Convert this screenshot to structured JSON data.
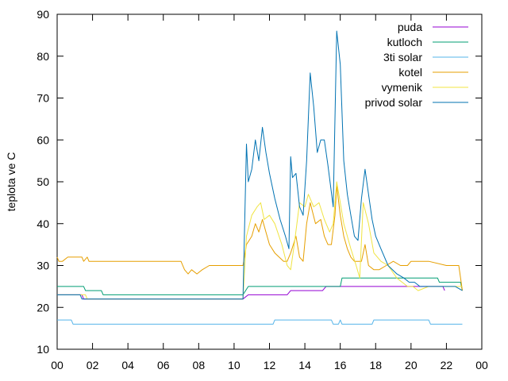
{
  "chart_data": {
    "type": "line",
    "title": "",
    "xlabel": "",
    "ylabel": "teplota ve C",
    "xlim": [
      0,
      24
    ],
    "ylim": [
      10,
      90
    ],
    "x_unit": "hour",
    "x_ticks": [
      "00",
      "02",
      "04",
      "06",
      "08",
      "10",
      "12",
      "14",
      "16",
      "18",
      "20",
      "22",
      "00"
    ],
    "y_ticks": [
      "10",
      "20",
      "30",
      "40",
      "50",
      "60",
      "70",
      "80",
      "90"
    ],
    "grid": false,
    "legend_position": "top-right",
    "series": [
      {
        "name": "puda",
        "color": "#9400d3",
        "points": [
          [
            0,
            23
          ],
          [
            1.4,
            23
          ],
          [
            1.5,
            22
          ],
          [
            10.5,
            22
          ],
          [
            10.8,
            23
          ],
          [
            13,
            23
          ],
          [
            13.2,
            24
          ],
          [
            15,
            24
          ],
          [
            15.2,
            25
          ],
          [
            21.8,
            25
          ],
          [
            21.9,
            24
          ]
        ]
      },
      {
        "name": "kutloch",
        "color": "#009e73",
        "points": [
          [
            0,
            25
          ],
          [
            1.5,
            25
          ],
          [
            1.6,
            24
          ],
          [
            2.5,
            24
          ],
          [
            2.6,
            23
          ],
          [
            10.5,
            23
          ],
          [
            10.8,
            25
          ],
          [
            16,
            25
          ],
          [
            16.1,
            27
          ],
          [
            21.5,
            27
          ],
          [
            21.6,
            26
          ],
          [
            22.8,
            26
          ],
          [
            22.9,
            24
          ]
        ]
      },
      {
        "name": "3ti solar",
        "color": "#56b4e9",
        "points": [
          [
            0,
            17
          ],
          [
            0.8,
            17
          ],
          [
            0.9,
            16
          ],
          [
            12.2,
            16
          ],
          [
            12.3,
            17
          ],
          [
            15.5,
            17
          ],
          [
            15.6,
            16
          ],
          [
            15.9,
            16
          ],
          [
            16,
            17
          ],
          [
            16.1,
            16
          ],
          [
            17.8,
            16
          ],
          [
            17.9,
            17
          ],
          [
            21,
            17
          ],
          [
            21.1,
            16
          ],
          [
            22.9,
            16
          ]
        ]
      },
      {
        "name": "kotel",
        "color": "#e69f00",
        "points": [
          [
            0,
            32
          ],
          [
            0.1,
            31
          ],
          [
            0.3,
            31
          ],
          [
            0.6,
            32
          ],
          [
            1.4,
            32
          ],
          [
            1.5,
            31
          ],
          [
            1.7,
            32
          ],
          [
            1.8,
            31
          ],
          [
            7,
            31
          ],
          [
            7.2,
            29
          ],
          [
            7.4,
            28
          ],
          [
            7.6,
            29
          ],
          [
            7.9,
            28
          ],
          [
            8.2,
            29
          ],
          [
            8.6,
            30
          ],
          [
            10.5,
            30
          ],
          [
            10.7,
            35
          ],
          [
            11,
            37
          ],
          [
            11.2,
            40
          ],
          [
            11.4,
            38
          ],
          [
            11.6,
            41
          ],
          [
            11.8,
            38
          ],
          [
            12,
            35
          ],
          [
            12.3,
            33
          ],
          [
            12.8,
            31
          ],
          [
            13,
            31
          ],
          [
            13.2,
            33
          ],
          [
            13.5,
            37
          ],
          [
            13.7,
            32
          ],
          [
            13.9,
            31
          ],
          [
            14.1,
            40
          ],
          [
            14.3,
            45
          ],
          [
            14.6,
            40
          ],
          [
            14.9,
            41
          ],
          [
            15.1,
            37
          ],
          [
            15.3,
            35
          ],
          [
            15.5,
            35
          ],
          [
            15.7,
            42
          ],
          [
            15.8,
            49
          ],
          [
            16,
            42
          ],
          [
            16.2,
            37
          ],
          [
            16.4,
            34
          ],
          [
            16.6,
            32
          ],
          [
            16.8,
            31
          ],
          [
            17,
            31
          ],
          [
            17.2,
            31
          ],
          [
            17.4,
            35
          ],
          [
            17.6,
            30
          ],
          [
            17.9,
            29
          ],
          [
            18.2,
            29
          ],
          [
            18.6,
            30
          ],
          [
            19,
            31
          ],
          [
            19.4,
            30
          ],
          [
            19.8,
            30
          ],
          [
            20,
            31
          ],
          [
            20.4,
            31
          ],
          [
            21,
            31
          ],
          [
            22,
            30
          ],
          [
            22.7,
            30
          ],
          [
            22.9,
            24
          ]
        ]
      },
      {
        "name": "vymenik",
        "color": "#f0e442",
        "points": [
          [
            0,
            23
          ],
          [
            1.6,
            23
          ],
          [
            1.7,
            22
          ],
          [
            10.5,
            22
          ],
          [
            10.7,
            37
          ],
          [
            11,
            42
          ],
          [
            11.3,
            44
          ],
          [
            11.5,
            45
          ],
          [
            11.7,
            41
          ],
          [
            12,
            42
          ],
          [
            12.3,
            40
          ],
          [
            12.7,
            35
          ],
          [
            13,
            30
          ],
          [
            13.2,
            29
          ],
          [
            13.4,
            35
          ],
          [
            13.7,
            45
          ],
          [
            14,
            44
          ],
          [
            14.2,
            47
          ],
          [
            14.5,
            44
          ],
          [
            14.8,
            45
          ],
          [
            15.1,
            41
          ],
          [
            15.4,
            38
          ],
          [
            15.6,
            40
          ],
          [
            15.8,
            50
          ],
          [
            16,
            45
          ],
          [
            16.2,
            40
          ],
          [
            16.4,
            37
          ],
          [
            16.6,
            34
          ],
          [
            16.9,
            30
          ],
          [
            17.1,
            27
          ],
          [
            17.3,
            45
          ],
          [
            17.6,
            40
          ],
          [
            17.9,
            33
          ],
          [
            18.3,
            31
          ],
          [
            18.7,
            30
          ],
          [
            19.2,
            27
          ],
          [
            19.5,
            26
          ],
          [
            19.8,
            25
          ],
          [
            20.1,
            25
          ],
          [
            20.4,
            24
          ],
          [
            21,
            25
          ],
          [
            21.5,
            25
          ],
          [
            22.2,
            25
          ],
          [
            22.9,
            25
          ]
        ]
      },
      {
        "name": "privod solar",
        "color": "#0072b2",
        "points": [
          [
            0,
            23
          ],
          [
            1.3,
            23
          ],
          [
            1.4,
            22
          ],
          [
            10.5,
            22
          ],
          [
            10.7,
            59
          ],
          [
            10.8,
            50
          ],
          [
            11,
            53
          ],
          [
            11.2,
            60
          ],
          [
            11.4,
            55
          ],
          [
            11.6,
            63
          ],
          [
            11.8,
            57
          ],
          [
            12,
            52
          ],
          [
            12.3,
            46
          ],
          [
            12.6,
            41
          ],
          [
            12.9,
            37
          ],
          [
            13.1,
            34
          ],
          [
            13.2,
            56
          ],
          [
            13.3,
            51
          ],
          [
            13.5,
            52
          ],
          [
            13.7,
            44
          ],
          [
            13.9,
            42
          ],
          [
            14.1,
            55
          ],
          [
            14.3,
            76
          ],
          [
            14.5,
            68
          ],
          [
            14.7,
            57
          ],
          [
            14.9,
            60
          ],
          [
            15.1,
            60
          ],
          [
            15.3,
            54
          ],
          [
            15.6,
            44
          ],
          [
            15.8,
            86
          ],
          [
            16,
            78
          ],
          [
            16.2,
            55
          ],
          [
            16.4,
            47
          ],
          [
            16.6,
            42
          ],
          [
            16.8,
            37
          ],
          [
            17,
            36
          ],
          [
            17.2,
            46
          ],
          [
            17.4,
            53
          ],
          [
            17.6,
            47
          ],
          [
            17.8,
            41
          ],
          [
            18,
            37
          ],
          [
            18.3,
            34
          ],
          [
            18.7,
            30
          ],
          [
            19.2,
            28
          ],
          [
            19.6,
            27
          ],
          [
            19.9,
            26
          ],
          [
            20.2,
            26
          ],
          [
            20.5,
            25
          ],
          [
            21.5,
            25
          ],
          [
            22.5,
            25
          ],
          [
            22.9,
            24
          ]
        ]
      }
    ]
  }
}
